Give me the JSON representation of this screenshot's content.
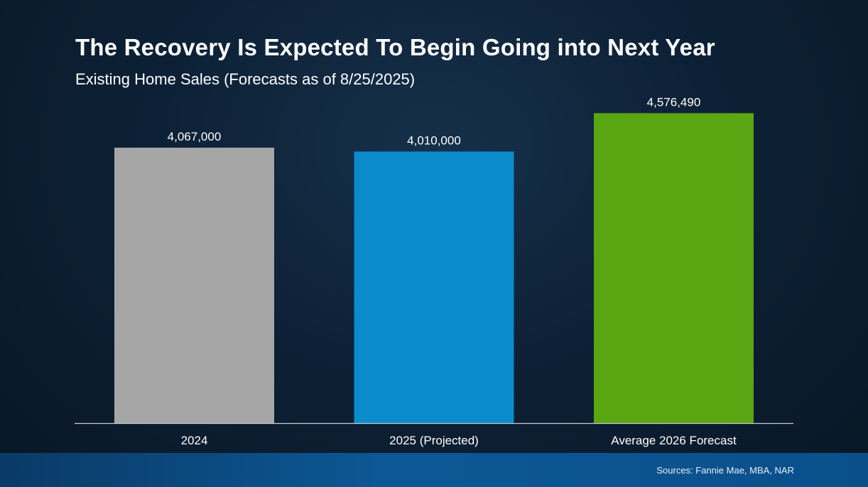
{
  "title": "The Recovery Is Expected To Begin Going into Next Year",
  "subtitle": "Existing Home Sales (Forecasts as of 8/25/2025)",
  "source": "Sources: Fannie Mae, MBA, NAR",
  "chart_data": {
    "type": "bar",
    "title": "The Recovery Is Expected To Begin Going into Next Year",
    "subtitle": "Existing Home Sales (Forecasts as of 8/25/2025)",
    "categories": [
      "2024",
      "2025 (Projected)",
      "Average 2026 Forecast"
    ],
    "values": [
      4067000,
      4010000,
      4576490
    ],
    "data_labels": [
      "4,067,000",
      "4,010,000",
      "4,576,490"
    ],
    "colors": [
      "#a6a6a6",
      "#0a8bcb",
      "#5aa512"
    ],
    "ylim": [
      0,
      5000000
    ],
    "grid": false,
    "legend": "none",
    "xlabel": "",
    "ylabel": ""
  },
  "colors": {
    "background": "#0d2136",
    "footer": "#0c5896",
    "axis": "#c8ccd2",
    "text": "#ffffff"
  }
}
